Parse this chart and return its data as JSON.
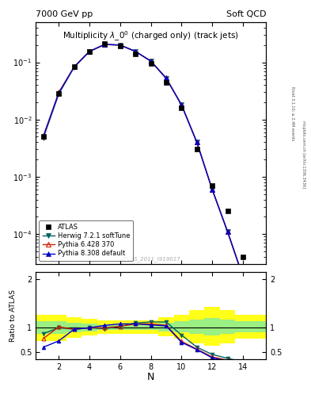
{
  "title_top_left": "7000 GeV pp",
  "title_top_right": "Soft QCD",
  "main_title": "Multiplicity $\\lambda\\_0^0$ (charged only) (track jets)",
  "watermark": "ATLAS_2011_I919017",
  "right_label": "Rivet 3.1.10; ≥ 2.4M events",
  "right_label2": "mcplots.cern.ch [arXiv:1306.3436]",
  "xlabel": "N",
  "ylabel_ratio": "Ratio to ATLAS",
  "atlas_x": [
    1,
    2,
    3,
    4,
    5,
    6,
    7,
    8,
    9,
    10,
    11,
    12,
    13,
    14
  ],
  "atlas_y": [
    0.005,
    0.028,
    0.085,
    0.155,
    0.21,
    0.195,
    0.14,
    0.095,
    0.045,
    0.016,
    0.003,
    0.0007,
    0.00025,
    4e-05
  ],
  "herwig_x": [
    1,
    2,
    3,
    4,
    5,
    6,
    7,
    8,
    9,
    10,
    11,
    12,
    13,
    14,
    15
  ],
  "herwig_y": [
    0.0048,
    0.028,
    0.082,
    0.155,
    0.205,
    0.2,
    0.155,
    0.105,
    0.052,
    0.018,
    0.004,
    0.0006,
    0.00011,
    1.8e-05,
    2.5e-06
  ],
  "pythia6_x": [
    1,
    2,
    3,
    4,
    5,
    6,
    7,
    8,
    9,
    10,
    11,
    12,
    13,
    14,
    15
  ],
  "pythia6_y": [
    0.005,
    0.03,
    0.083,
    0.155,
    0.205,
    0.2,
    0.155,
    0.105,
    0.053,
    0.018,
    0.004,
    0.0006,
    0.00011,
    1.8e-05,
    2.5e-06
  ],
  "pythia8_x": [
    1,
    2,
    3,
    4,
    5,
    6,
    7,
    8,
    9,
    10,
    11,
    12,
    13,
    14,
    15
  ],
  "pythia8_y": [
    0.0052,
    0.029,
    0.083,
    0.156,
    0.206,
    0.201,
    0.155,
    0.105,
    0.053,
    0.018,
    0.004,
    0.0006,
    0.00011,
    1.8e-05,
    2.5e-06
  ],
  "herwig_ratio": [
    0.88,
    1.0,
    0.97,
    1.0,
    0.98,
    1.03,
    1.1,
    1.12,
    1.12,
    0.85,
    0.6,
    0.45,
    0.37,
    0.3,
    0.27
  ],
  "pythia6_ratio": [
    0.78,
    1.02,
    0.97,
    1.0,
    1.0,
    1.03,
    1.08,
    1.08,
    1.05,
    0.72,
    0.56,
    0.4,
    0.33,
    0.27,
    0.23
  ],
  "pythia8_ratio": [
    0.6,
    0.73,
    0.97,
    1.0,
    1.05,
    1.08,
    1.08,
    1.06,
    1.04,
    0.7,
    0.55,
    0.38,
    0.32,
    0.27,
    0.23
  ],
  "band_x_edges": [
    0.5,
    1.5,
    2.5,
    3.5,
    4.5,
    5.5,
    6.5,
    7.5,
    8.5,
    9.5,
    10.5,
    11.5,
    12.5,
    13.5,
    14.5,
    15.5
  ],
  "band_green_low": [
    0.87,
    0.87,
    0.9,
    0.93,
    0.95,
    0.95,
    0.95,
    0.95,
    0.93,
    0.9,
    0.87,
    0.85,
    0.87,
    0.9,
    0.9
  ],
  "band_green_high": [
    1.13,
    1.13,
    1.1,
    1.08,
    1.06,
    1.06,
    1.06,
    1.06,
    1.1,
    1.13,
    1.17,
    1.2,
    1.17,
    1.13,
    1.13
  ],
  "band_yellow_low": [
    0.73,
    0.73,
    0.8,
    0.85,
    0.88,
    0.88,
    0.88,
    0.88,
    0.82,
    0.77,
    0.68,
    0.63,
    0.68,
    0.77,
    0.77
  ],
  "band_yellow_high": [
    1.27,
    1.27,
    1.22,
    1.18,
    1.15,
    1.15,
    1.15,
    1.15,
    1.22,
    1.27,
    1.37,
    1.43,
    1.37,
    1.27,
    1.27
  ],
  "herwig_color": "#006060",
  "pythia6_color": "#cc2200",
  "pythia8_color": "#0000cc",
  "atlas_color": "#000000",
  "ylim_main_low": 3e-05,
  "ylim_main_high": 0.5,
  "ylim_ratio_low": 0.35,
  "ylim_ratio_high": 2.15,
  "xlim_low": 0.5,
  "xlim_high": 15.5,
  "ratio_yticks": [
    0.5,
    1.0,
    2.0
  ],
  "ratio_yticklabels": [
    "0.5",
    "1",
    "2"
  ]
}
